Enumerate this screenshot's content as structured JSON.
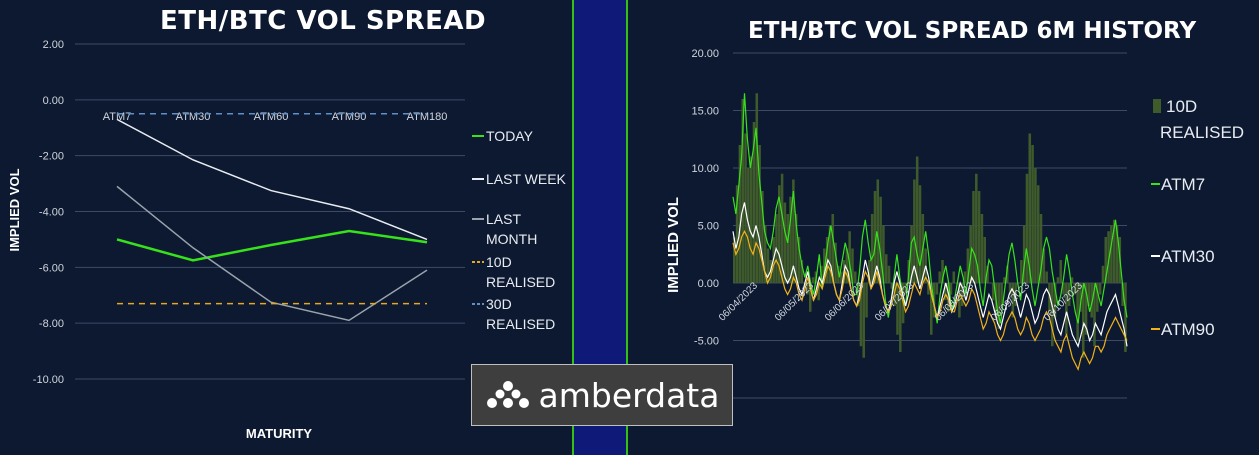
{
  "colors": {
    "background": "#0c1930",
    "grid": "#3c4a66",
    "today": "#37e21c",
    "last_week": "#e8ecf2",
    "last_month": "#9aa3ad",
    "realised_10d": "#e6a722",
    "realised_30d": "#5f8fc8",
    "atm7_hist": "#37e21c",
    "atm30_hist": "#ffffff",
    "atm90_hist": "#f0b11a",
    "bars_10d": "#3f5a2b",
    "divider": "#0f1a78",
    "divider_border": "#34c016"
  },
  "logo": {
    "text": "amberdata",
    "icon": "amberdata-cluster-icon"
  },
  "chart_data": [
    {
      "type": "line",
      "title": "ETH/BTC VOL SPREAD",
      "xlabel": "MATURITY",
      "ylabel": "IMPLIED VOL",
      "categories": [
        "ATM7",
        "ATM30",
        "ATM60",
        "ATM90",
        "ATM180"
      ],
      "y_ticks": [
        "2.00",
        "0.00",
        "-2.00",
        "-4.00",
        "-6.00",
        "-8.00",
        "-10.00"
      ],
      "ylim": [
        -10,
        2
      ],
      "grid": true,
      "legend_position": "right",
      "series": [
        {
          "name": "TODAY",
          "values": [
            -5.0,
            -5.75,
            -5.2,
            -4.7,
            -5.1
          ]
        },
        {
          "name": "LAST WEEK",
          "values": [
            -0.7,
            -2.15,
            -3.25,
            -3.9,
            -5.0
          ]
        },
        {
          "name": "LAST MONTH",
          "values": [
            -3.1,
            -5.3,
            -7.25,
            -7.9,
            -6.1
          ]
        },
        {
          "name": "10D REALISED",
          "values": [
            -7.3,
            -7.3,
            -7.3,
            -7.3,
            -7.3
          ]
        },
        {
          "name": "30D REALISED",
          "values": [
            -0.5,
            -0.5,
            -0.5,
            -0.5,
            -0.5
          ]
        }
      ]
    },
    {
      "type": "line",
      "title": "ETH/BTC VOL SPREAD 6M HISTORY",
      "ylabel": "IMPLIED VOL",
      "y_ticks": [
        "20.00",
        "15.00",
        "10.00",
        "5.00",
        "0.00",
        "-5.00"
      ],
      "ylim": [
        -10,
        20
      ],
      "x_ticks": [
        "06/04/2023",
        "06/05/2023",
        "06/06/2023",
        "06/07/2023",
        "06/08/2023",
        "06/09/2023",
        "06/10/2023"
      ],
      "grid": true,
      "legend_position": "right",
      "series": [
        {
          "name": "10D REALISED",
          "kind": "bar",
          "values": [
            4.0,
            8.5,
            12.0,
            16.0,
            13.0,
            10.0,
            11.0,
            14.0,
            16.5,
            12.0,
            8.0,
            5.0,
            3.0,
            2.0,
            4.0,
            6.0,
            8.5,
            9.5,
            7.0,
            6.0,
            7.5,
            9.0,
            6.0,
            4.0,
            2.0,
            0.0,
            -1.0,
            -2.5,
            0.5,
            1.0,
            -1.5,
            1.5,
            3.0,
            4.0,
            5.0,
            6.0,
            3.5,
            1.5,
            1.0,
            2.0,
            3.0,
            4.5,
            3.0,
            1.0,
            -2.0,
            -5.5,
            -6.5,
            -3.0,
            2.0,
            6.0,
            8.0,
            9.0,
            7.5,
            5.0,
            2.5,
            1.5,
            -0.5,
            -2.0,
            -4.5,
            -6.0,
            -3.5,
            -1.0,
            2.0,
            5.0,
            9.0,
            11.0,
            8.5,
            6.0,
            3.0,
            -1.0,
            -4.5,
            -3.0,
            -1.0,
            1.0,
            2.0,
            -1.5,
            -2.5,
            -1.0,
            1.0,
            0.0,
            -3.0,
            -2.0,
            1.0,
            3.0,
            5.0,
            8.0,
            9.5,
            8.0,
            6.0,
            4.0,
            1.5,
            0.0,
            -1.5,
            -3.0,
            -4.0,
            -2.0,
            0.5,
            1.5,
            -1.0,
            -3.0,
            -2.0,
            0.0,
            2.0,
            5.0,
            9.5,
            13.0,
            12.0,
            10.0,
            8.5,
            6.0,
            3.0,
            1.0,
            -2.5,
            -5.5,
            -3.0,
            0.5,
            2.0,
            -1.0,
            -4.5,
            -2.0,
            0.5,
            -1.0,
            -5.0,
            -2.5,
            -6.5,
            -4.5,
            -2.0,
            -3.0,
            -5.5,
            -2.5,
            -1.0,
            1.5,
            4.0,
            4.5,
            5.0,
            5.5,
            5.0,
            4.0,
            -2.0,
            -6.0
          ]
        },
        {
          "name": "ATM7",
          "values": [
            7.5,
            6.0,
            8.5,
            11.0,
            16.5,
            12.5,
            10.0,
            11.5,
            13.5,
            9.5,
            7.0,
            4.5,
            3.5,
            3.0,
            4.5,
            6.5,
            7.5,
            6.0,
            4.5,
            3.5,
            5.5,
            8.0,
            5.0,
            3.0,
            1.5,
            0.5,
            1.5,
            0.0,
            -1.0,
            0.5,
            2.5,
            -0.5,
            1.5,
            3.5,
            5.0,
            3.5,
            2.0,
            0.5,
            2.0,
            3.5,
            2.5,
            1.0,
            -1.0,
            -1.0,
            1.0,
            4.0,
            5.5,
            3.5,
            2.0,
            2.5,
            4.5,
            3.0,
            1.0,
            -1.5,
            -3.0,
            -1.5,
            0.5,
            2.5,
            0.5,
            -1.0,
            -2.0,
            0.5,
            3.5,
            4.0,
            2.5,
            1.5,
            3.0,
            4.5,
            2.5,
            0.0,
            -2.0,
            -3.5,
            -1.0,
            0.5,
            1.5,
            0.0,
            -2.5,
            -1.5,
            0.0,
            1.5,
            0.5,
            -1.0,
            1.0,
            3.0,
            2.5,
            1.5,
            -0.5,
            -2.0,
            0.5,
            2.0,
            1.5,
            -0.5,
            -2.5,
            -3.5,
            -1.5,
            0.5,
            2.5,
            3.5,
            2.0,
            0.0,
            -1.5,
            1.0,
            3.0,
            1.5,
            -0.5,
            -2.0,
            -0.5,
            1.0,
            3.0,
            4.0,
            3.0,
            1.0,
            -0.5,
            -2.0,
            -1.0,
            0.5,
            2.5,
            1.0,
            -1.0,
            -2.5,
            -3.5,
            -1.5,
            0.0,
            -1.0,
            -2.5,
            -1.5,
            0.0,
            -1.0,
            -2.0,
            -0.5,
            1.0,
            2.5,
            4.0,
            5.5,
            3.5,
            1.0,
            -1.5,
            -3.0
          ]
        },
        {
          "name": "ATM30",
          "values": [
            4.5,
            3.0,
            4.0,
            6.0,
            7.0,
            5.5,
            4.5,
            4.0,
            5.0,
            4.0,
            2.5,
            1.0,
            0.5,
            1.0,
            2.0,
            3.0,
            2.5,
            1.5,
            0.5,
            0.0,
            0.5,
            1.5,
            0.5,
            -0.5,
            -1.0,
            0.0,
            1.0,
            -0.5,
            -1.5,
            -0.5,
            0.5,
            0.0,
            1.0,
            2.0,
            1.5,
            0.0,
            -1.0,
            -1.5,
            0.0,
            1.5,
            1.0,
            -0.5,
            -1.5,
            -2.0,
            -1.0,
            0.5,
            2.0,
            1.0,
            -0.5,
            0.5,
            1.5,
            0.5,
            -1.0,
            -2.0,
            -2.5,
            -1.5,
            0.0,
            1.0,
            0.0,
            -1.0,
            -2.0,
            -1.0,
            0.5,
            1.5,
            0.5,
            -0.5,
            0.5,
            1.5,
            0.5,
            -1.0,
            -2.0,
            -3.0,
            -2.0,
            -1.0,
            0.0,
            -1.0,
            -2.5,
            -2.0,
            -1.0,
            0.0,
            -0.5,
            -1.5,
            -0.5,
            0.5,
            0.0,
            -1.0,
            -2.0,
            -3.0,
            -2.0,
            -1.0,
            -1.5,
            -2.5,
            -3.5,
            -4.0,
            -3.0,
            -2.0,
            -1.0,
            -0.5,
            -1.0,
            -2.0,
            -3.0,
            -2.0,
            -1.0,
            -1.5,
            -2.5,
            -3.5,
            -3.0,
            -2.0,
            -1.0,
            -0.5,
            -1.0,
            -2.0,
            -3.0,
            -4.0,
            -4.5,
            -3.5,
            -2.5,
            -3.5,
            -4.5,
            -5.0,
            -5.5,
            -4.5,
            -3.5,
            -4.0,
            -5.0,
            -4.5,
            -3.5,
            -4.0,
            -4.5,
            -3.5,
            -2.5,
            -2.0,
            -1.5,
            -1.0,
            -2.0,
            -3.0,
            -4.0,
            -5.5
          ]
        },
        {
          "name": "ATM90",
          "values": [
            3.5,
            2.5,
            3.0,
            4.0,
            4.5,
            4.0,
            3.0,
            2.5,
            3.5,
            3.0,
            2.0,
            1.0,
            0.0,
            0.5,
            1.5,
            2.0,
            1.5,
            0.5,
            -0.5,
            -1.0,
            -0.5,
            0.5,
            0.0,
            -1.0,
            -1.5,
            -0.5,
            0.5,
            -0.5,
            -1.5,
            -1.0,
            0.0,
            -0.5,
            0.5,
            1.5,
            1.0,
            0.0,
            -1.0,
            -1.5,
            -0.5,
            1.0,
            0.5,
            -0.5,
            -1.5,
            -2.0,
            -1.5,
            0.0,
            1.0,
            0.5,
            -0.5,
            0.0,
            1.0,
            0.0,
            -1.0,
            -2.0,
            -2.5,
            -2.0,
            -1.0,
            0.0,
            -0.5,
            -1.5,
            -2.5,
            -2.0,
            -1.0,
            0.0,
            -0.5,
            -1.0,
            0.0,
            0.5,
            0.0,
            -1.0,
            -2.0,
            -3.0,
            -2.5,
            -1.5,
            -1.0,
            -1.5,
            -2.5,
            -2.5,
            -1.5,
            -1.0,
            -1.5,
            -2.0,
            -1.5,
            -0.5,
            -1.0,
            -2.0,
            -3.0,
            -4.0,
            -3.5,
            -2.5,
            -3.0,
            -3.5,
            -4.5,
            -5.0,
            -4.5,
            -3.5,
            -3.0,
            -2.5,
            -3.0,
            -4.0,
            -4.5,
            -4.0,
            -3.0,
            -3.5,
            -4.5,
            -5.0,
            -4.5,
            -4.0,
            -3.0,
            -2.5,
            -3.0,
            -4.0,
            -5.0,
            -5.5,
            -6.0,
            -5.0,
            -4.5,
            -5.5,
            -6.5,
            -7.0,
            -7.5,
            -6.5,
            -6.0,
            -6.5,
            -7.0,
            -6.5,
            -5.5,
            -5.5,
            -6.0,
            -5.5,
            -4.5,
            -4.0,
            -3.5,
            -3.0,
            -3.5,
            -4.0,
            -4.5,
            -5.0
          ]
        }
      ]
    }
  ]
}
